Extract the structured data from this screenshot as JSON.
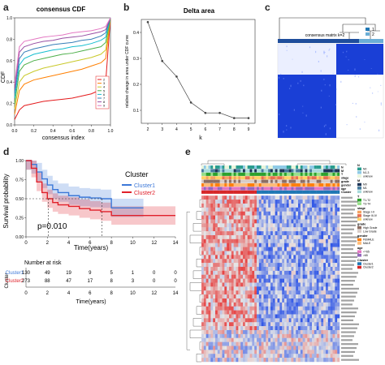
{
  "panels": {
    "a": {
      "letter": "a",
      "title": "consensus CDF",
      "xlabel": "consensus index",
      "ylabel": "CDF",
      "xticks": [
        "0.0",
        "0.2",
        "0.4",
        "0.6",
        "0.8",
        "1.0"
      ],
      "yticks": [
        "0.0",
        "0.2",
        "0.4",
        "0.6",
        "0.8",
        "1.0"
      ],
      "legend": [
        "2",
        "3",
        "4",
        "5",
        "6",
        "7",
        "8",
        "9"
      ],
      "colors": [
        "#e41a1c",
        "#ff7f00",
        "#c9c92a",
        "#4daf4a",
        "#17becf",
        "#377eb8",
        "#984ea3",
        "#e377c2"
      ]
    },
    "b": {
      "letter": "b",
      "title": "Delta area",
      "xlabel": "k",
      "ylabel": "relative change in area under CDF curve",
      "xticks": [
        "2",
        "3",
        "4",
        "5",
        "6",
        "7",
        "8",
        "9"
      ],
      "yticks": [
        "0.1",
        "0.2",
        "0.3",
        "0.4"
      ]
    },
    "c": {
      "letter": "c",
      "title": "consensus matrix k=2",
      "legend": [
        "1",
        "2"
      ],
      "colors": [
        "#1f77b4",
        "#6baed6"
      ]
    },
    "d": {
      "letter": "d",
      "ylabel": "Survival probability",
      "xlabel": "Time(years)",
      "xticks": [
        "0",
        "2",
        "4",
        "6",
        "8",
        "10",
        "12",
        "14"
      ],
      "yticks": [
        "0.00",
        "0.25",
        "0.50",
        "0.75",
        "1.00"
      ],
      "legend_title": "Cluster",
      "legend": [
        "Cluster1",
        "Cluster2"
      ],
      "colors": [
        "#3c78d8",
        "#e0202a"
      ],
      "pvalue": "p=0.010",
      "risk_title": "Number at risk",
      "risk_ylabel": "Cluster",
      "risk_xlabel": "Time(years)",
      "risk_rows": [
        {
          "name": "Cluster1",
          "values": [
            "130",
            "49",
            "19",
            "9",
            "5",
            "1",
            "0",
            "0"
          ]
        },
        {
          "name": "Cluster2",
          "values": [
            "273",
            "88",
            "47",
            "17",
            "8",
            "3",
            "0",
            "0"
          ]
        }
      ]
    },
    "e": {
      "letter": "e",
      "annotation_rows": [
        "N",
        "M",
        "T",
        "stage",
        "grade",
        "gender",
        "age",
        "Cluster"
      ],
      "legend_groups": [
        {
          "title": "N",
          "items": [
            "N0",
            "N1-3",
            "unknow"
          ]
        },
        {
          "title": "M",
          "items": [
            "M0",
            "M1",
            "unknow"
          ]
        },
        {
          "title": "T",
          "items": [
            "T1-T2",
            "T3-T4"
          ]
        },
        {
          "title": "stage",
          "items": [
            "Stage I-II",
            "Stage III-IV",
            "unknow"
          ]
        },
        {
          "title": "grade",
          "items": [
            "High Grade",
            "Low Grade"
          ]
        },
        {
          "title": "gender",
          "items": [
            "FEMALE",
            "MALE"
          ]
        },
        {
          "title": "age",
          "items": [
            "<=65",
            ">65"
          ]
        },
        {
          "title": "Cluster",
          "items": [
            "Cluster1",
            "Cluster2"
          ]
        }
      ]
    }
  },
  "chart_data": [
    {
      "type": "line",
      "title": "consensus CDF",
      "xlabel": "consensus index",
      "ylabel": "CDF",
      "xlim": [
        0,
        1
      ],
      "ylim": [
        0,
        1
      ],
      "x": [
        0,
        0.05,
        0.1,
        0.2,
        0.3,
        0.4,
        0.5,
        0.6,
        0.7,
        0.8,
        0.9,
        0.95,
        1.0
      ],
      "series": [
        {
          "name": "2",
          "values": [
            0.05,
            0.14,
            0.18,
            0.2,
            0.22,
            0.23,
            0.24,
            0.25,
            0.27,
            0.29,
            0.33,
            0.4,
            1.0
          ]
        },
        {
          "name": "3",
          "values": [
            0.1,
            0.32,
            0.38,
            0.42,
            0.44,
            0.46,
            0.48,
            0.5,
            0.52,
            0.55,
            0.58,
            0.62,
            1.0
          ]
        },
        {
          "name": "4",
          "values": [
            0.15,
            0.4,
            0.46,
            0.5,
            0.53,
            0.55,
            0.57,
            0.59,
            0.61,
            0.63,
            0.66,
            0.7,
            1.0
          ]
        },
        {
          "name": "5",
          "values": [
            0.2,
            0.5,
            0.56,
            0.6,
            0.62,
            0.64,
            0.66,
            0.67,
            0.69,
            0.71,
            0.73,
            0.77,
            1.0
          ]
        },
        {
          "name": "6",
          "values": [
            0.25,
            0.56,
            0.62,
            0.66,
            0.68,
            0.7,
            0.71,
            0.73,
            0.74,
            0.76,
            0.79,
            0.82,
            1.0
          ]
        },
        {
          "name": "7",
          "values": [
            0.3,
            0.62,
            0.68,
            0.71,
            0.73,
            0.75,
            0.76,
            0.77,
            0.79,
            0.8,
            0.83,
            0.86,
            1.0
          ]
        },
        {
          "name": "8",
          "values": [
            0.34,
            0.68,
            0.73,
            0.76,
            0.78,
            0.79,
            0.81,
            0.82,
            0.83,
            0.85,
            0.87,
            0.89,
            1.0
          ]
        },
        {
          "name": "9",
          "values": [
            0.38,
            0.73,
            0.78,
            0.8,
            0.82,
            0.83,
            0.84,
            0.86,
            0.87,
            0.88,
            0.9,
            0.92,
            1.0
          ]
        }
      ]
    },
    {
      "type": "line",
      "title": "Delta area",
      "xlabel": "k",
      "ylabel": "relative change in area under CDF curve",
      "categories": [
        2,
        3,
        4,
        5,
        6,
        7,
        8,
        9
      ],
      "values": [
        0.44,
        0.29,
        0.23,
        0.13,
        0.09,
        0.09,
        0.07,
        0.07
      ],
      "ylim": [
        0.05,
        0.45
      ]
    },
    {
      "type": "line",
      "title": "",
      "xlabel": "Time(years)",
      "ylabel": "Survival probability",
      "xlim": [
        0,
        14
      ],
      "ylim": [
        0,
        1
      ],
      "series": [
        {
          "name": "Cluster1",
          "x": [
            0,
            0.5,
            1,
            1.5,
            2,
            2.5,
            3,
            4,
            5,
            6,
            7,
            8,
            9,
            10,
            11
          ],
          "values": [
            1.0,
            0.95,
            0.85,
            0.76,
            0.68,
            0.62,
            0.58,
            0.54,
            0.52,
            0.51,
            0.5,
            0.38,
            0.38,
            0.38,
            0.38
          ]
        },
        {
          "name": "Cluster2",
          "x": [
            0,
            0.5,
            1,
            1.5,
            2,
            2.5,
            3,
            4,
            5,
            6,
            7,
            8,
            9,
            10,
            11,
            12,
            13,
            14
          ],
          "values": [
            1.0,
            0.9,
            0.72,
            0.58,
            0.5,
            0.45,
            0.42,
            0.4,
            0.37,
            0.35,
            0.33,
            0.28,
            0.28,
            0.28,
            0.28,
            0.28,
            0.28,
            0.28
          ]
        }
      ],
      "annotations": [
        "p=0.010"
      ]
    }
  ]
}
